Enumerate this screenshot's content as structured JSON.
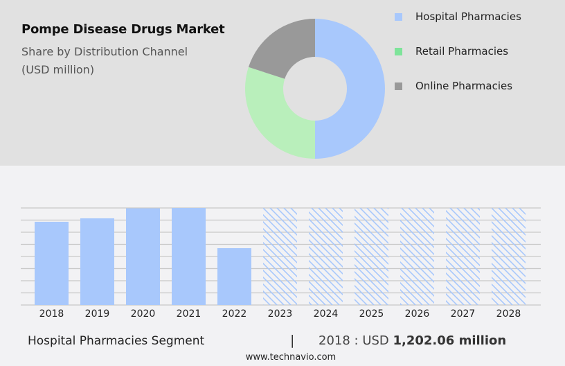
{
  "header": {
    "title": "Pompe Disease Drugs Market",
    "subtitle_line1": "Share by Distribution Channel",
    "subtitle_line2": "(USD million)"
  },
  "legend": {
    "items": [
      {
        "label": "Hospital Pharmacies",
        "color": "#a8c8fc"
      },
      {
        "label": "Retail Pharmacies",
        "color": "#7ee49a"
      },
      {
        "label": "Online Pharmacies",
        "color": "#999999"
      }
    ]
  },
  "footer": {
    "segment": "Hospital Pharmacies Segment",
    "separator": "|",
    "year_prefix": "2018 : USD ",
    "value": "1,202.06 million",
    "url": "www.technavio.com"
  },
  "chart_data": [
    {
      "type": "pie",
      "title": "Pompe Disease Drugs Market - Share by Distribution Channel (USD million)",
      "style": "donut",
      "categories": [
        "Hospital Pharmacies",
        "Retail Pharmacies",
        "Online Pharmacies"
      ],
      "values": [
        50,
        30,
        20
      ],
      "unit": "% share (estimated from slice angles)",
      "colors": [
        "#a8c8fc",
        "#b9efbb",
        "#999999"
      ],
      "legend_position": "right"
    },
    {
      "type": "bar",
      "title": "Hospital Pharmacies Segment",
      "categories": [
        "2018",
        "2019",
        "2020",
        "2021",
        "2022",
        "2023",
        "2024",
        "2025",
        "2026",
        "2027",
        "2028"
      ],
      "series": [
        {
          "name": "Hospital Pharmacies (USD million)",
          "values": [
            1202.06,
            1252,
            1397,
            1402,
            821,
            null,
            null,
            null,
            null,
            null,
            null
          ],
          "forecast_hatched": [
            false,
            false,
            false,
            false,
            false,
            true,
            true,
            true,
            true,
            true,
            true
          ]
        }
      ],
      "xlabel": "",
      "ylabel": "",
      "ylim": [
        0,
        1402
      ],
      "grid": true,
      "y_tick_labels_visible": false,
      "annotation": "2018 : USD 1,202.06 million",
      "bar_color": "#a8c8fc"
    }
  ]
}
